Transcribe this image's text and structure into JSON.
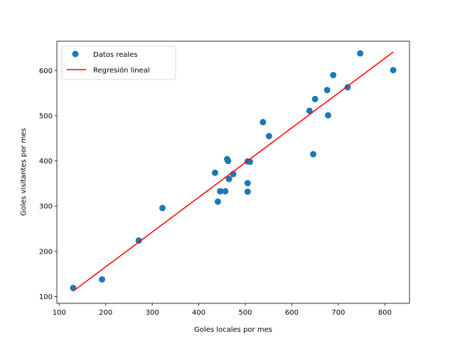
{
  "chart_data": {
    "type": "scatter",
    "xlabel": "Goles locales por mes",
    "ylabel": "Goles visitantes por mes",
    "xlim": [
      95,
      853
    ],
    "ylim": [
      85,
      665
    ],
    "xticks": [
      100,
      200,
      300,
      400,
      500,
      600,
      700,
      800
    ],
    "yticks": [
      100,
      200,
      300,
      400,
      500,
      600
    ],
    "grid": false,
    "legend_position": "top-left",
    "series": [
      {
        "name": "Datos reales",
        "kind": "scatter",
        "color": "#1f77b4",
        "points": [
          [
            130,
            119
          ],
          [
            192,
            138
          ],
          [
            271,
            224
          ],
          [
            322,
            296
          ],
          [
            435,
            374
          ],
          [
            441,
            310
          ],
          [
            446,
            333
          ],
          [
            457,
            333
          ],
          [
            461,
            404
          ],
          [
            463,
            400
          ],
          [
            465,
            360
          ],
          [
            474,
            371
          ],
          [
            505,
            399
          ],
          [
            505,
            351
          ],
          [
            505,
            332
          ],
          [
            510,
            398
          ],
          [
            538,
            486
          ],
          [
            551,
            455
          ],
          [
            638,
            511
          ],
          [
            646,
            415
          ],
          [
            650,
            537
          ],
          [
            676,
            557
          ],
          [
            678,
            501
          ],
          [
            689,
            590
          ],
          [
            720,
            563
          ],
          [
            747,
            638
          ],
          [
            818,
            601
          ]
        ]
      },
      {
        "name": "Regresión lineal",
        "kind": "line",
        "color": "#ff0000",
        "points": [
          [
            130,
            112
          ],
          [
            818,
            641
          ]
        ]
      }
    ]
  }
}
